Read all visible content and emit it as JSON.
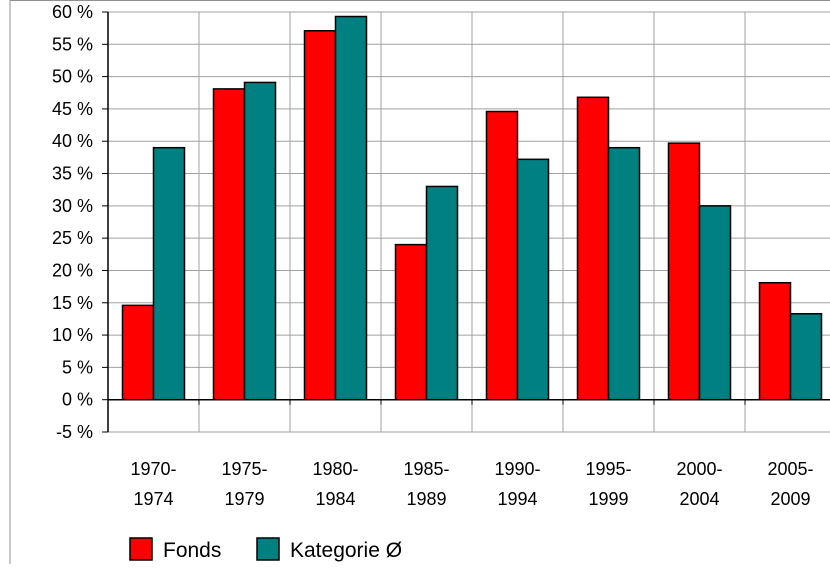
{
  "chart_data": {
    "type": "bar",
    "categories": [
      [
        "1970-",
        "1974"
      ],
      [
        "1975-",
        "1979"
      ],
      [
        "1980-",
        "1984"
      ],
      [
        "1985-",
        "1989"
      ],
      [
        "1990-",
        "1994"
      ],
      [
        "1995-",
        "1999"
      ],
      [
        "2000-",
        "2004"
      ],
      [
        "2005-",
        "2009"
      ]
    ],
    "series": [
      {
        "name": "Fonds",
        "color": "#ff0000",
        "values": [
          14.6,
          48.1,
          57.1,
          24.0,
          44.6,
          46.8,
          39.7,
          18.1
        ]
      },
      {
        "name": "Kategorie Ø",
        "color": "#008080",
        "values": [
          39.0,
          49.1,
          59.3,
          33.0,
          37.2,
          39.0,
          30.0,
          13.3
        ]
      }
    ],
    "yticks": [
      "-5 %",
      "0 %",
      "5 %",
      "10 %",
      "15 %",
      "20 %",
      "25 %",
      "30 %",
      "35 %",
      "40 %",
      "45 %",
      "50 %",
      "55 %",
      "60 %"
    ],
    "ylim": [
      -5,
      60
    ],
    "grid": true,
    "legend": "bottom-left",
    "title": "",
    "xlabel": "",
    "ylabel": ""
  }
}
